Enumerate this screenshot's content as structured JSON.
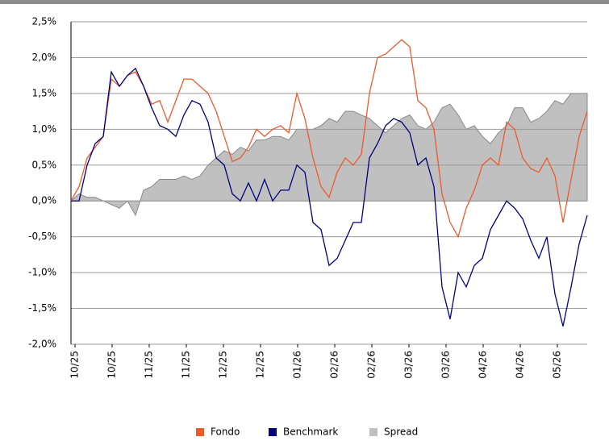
{
  "chart_data": {
    "type": "line",
    "x": [
      0,
      1,
      2,
      3,
      4,
      5,
      6,
      7,
      8,
      9,
      10,
      11,
      12,
      13,
      14,
      15,
      16,
      17,
      18,
      19,
      20,
      21,
      22,
      23,
      24,
      25,
      26,
      27,
      28,
      29,
      30,
      31,
      32,
      33,
      34,
      35,
      36,
      37,
      38,
      39,
      40,
      41,
      42,
      43,
      44,
      45,
      46,
      47,
      48,
      49,
      50,
      51,
      52,
      53,
      54,
      55,
      56,
      57,
      58,
      59,
      60,
      61,
      62,
      63,
      64
    ],
    "series": [
      {
        "name": "Fondo",
        "color": "#ee5a2a",
        "style": "line",
        "values": [
          0.0,
          0.2,
          0.6,
          0.75,
          0.9,
          1.7,
          1.6,
          1.75,
          1.8,
          1.6,
          1.35,
          1.4,
          1.1,
          1.4,
          1.7,
          1.7,
          1.6,
          1.5,
          1.25,
          0.9,
          0.55,
          0.6,
          0.75,
          1.0,
          0.9,
          1.0,
          1.05,
          0.95,
          1.5,
          1.15,
          0.6,
          0.2,
          0.05,
          0.4,
          0.6,
          0.5,
          0.65,
          1.5,
          2.0,
          2.05,
          2.15,
          2.25,
          2.15,
          1.4,
          1.3,
          1.0,
          0.1,
          -0.3,
          -0.5,
          -0.1,
          0.15,
          0.5,
          0.6,
          0.5,
          1.1,
          1.0,
          0.6,
          0.45,
          0.4,
          0.6,
          0.35,
          -0.3,
          0.3,
          0.9,
          1.25
        ]
      },
      {
        "name": "Benchmark",
        "color": "#000080",
        "style": "line",
        "values": [
          0.0,
          0.0,
          0.5,
          0.8,
          0.9,
          1.8,
          1.6,
          1.75,
          1.85,
          1.6,
          1.3,
          1.05,
          1.0,
          0.9,
          1.2,
          1.4,
          1.35,
          1.1,
          0.6,
          0.5,
          0.1,
          0.0,
          0.25,
          0.0,
          0.3,
          0.0,
          0.15,
          0.15,
          0.5,
          0.4,
          -0.3,
          -0.4,
          -0.9,
          -0.8,
          -0.55,
          -0.3,
          -0.3,
          0.6,
          0.8,
          1.05,
          1.15,
          1.1,
          0.95,
          0.5,
          0.6,
          0.2,
          -1.2,
          -1.65,
          -1.0,
          -1.2,
          -0.9,
          -0.8,
          -0.4,
          -0.2,
          0.0,
          -0.1,
          -0.25,
          -0.55,
          -0.8,
          -0.5,
          -1.3,
          -1.75,
          -1.2,
          -0.6,
          -0.2
        ]
      },
      {
        "name": "Spread",
        "color": "#c0c0c0",
        "style": "area",
        "values": [
          0.0,
          0.1,
          0.05,
          0.05,
          0.0,
          -0.05,
          -0.1,
          0.0,
          -0.2,
          0.15,
          0.2,
          0.3,
          0.3,
          0.3,
          0.35,
          0.3,
          0.35,
          0.5,
          0.6,
          0.7,
          0.65,
          0.75,
          0.7,
          0.85,
          0.85,
          0.9,
          0.9,
          0.85,
          1.0,
          1.0,
          1.0,
          1.05,
          1.15,
          1.1,
          1.25,
          1.25,
          1.2,
          1.15,
          1.05,
          0.95,
          1.05,
          1.15,
          1.2,
          1.05,
          1.0,
          1.1,
          1.3,
          1.35,
          1.2,
          1.0,
          1.05,
          0.9,
          0.8,
          0.95,
          1.05,
          1.3,
          1.3,
          1.1,
          1.15,
          1.25,
          1.4,
          1.35,
          1.5,
          1.5,
          1.5
        ]
      }
    ],
    "xlim": [
      0,
      64
    ],
    "xticks": [
      {
        "value": 0.5,
        "label": "10/25"
      },
      {
        "value": 5.1,
        "label": "10/25"
      },
      {
        "value": 9.7,
        "label": "11/25"
      },
      {
        "value": 14.3,
        "label": "11/25"
      },
      {
        "value": 18.9,
        "label": "12/25"
      },
      {
        "value": 23.5,
        "label": "12/25"
      },
      {
        "value": 28.1,
        "label": "01/26"
      },
      {
        "value": 32.7,
        "label": "02/26"
      },
      {
        "value": 37.3,
        "label": "02/26"
      },
      {
        "value": 41.9,
        "label": "03/26"
      },
      {
        "value": 46.5,
        "label": "03/26"
      },
      {
        "value": 51.1,
        "label": "04/26"
      },
      {
        "value": 55.7,
        "label": "04/26"
      },
      {
        "value": 60.3,
        "label": "05/26"
      }
    ],
    "ylim": [
      -2.0,
      2.5
    ],
    "yticks": [
      {
        "value": 2.5,
        "label": "2,5%"
      },
      {
        "value": 2.0,
        "label": "2,0%"
      },
      {
        "value": 1.5,
        "label": "1,5%"
      },
      {
        "value": 1.0,
        "label": "1,0%"
      },
      {
        "value": 0.5,
        "label": "0,5%"
      },
      {
        "value": 0.0,
        "label": "0,0%"
      },
      {
        "value": -0.5,
        "label": "-0,5%"
      },
      {
        "value": -1.0,
        "label": "-1,0%"
      },
      {
        "value": -1.5,
        "label": "-1,5%"
      },
      {
        "value": -2.0,
        "label": "-2,0%"
      }
    ],
    "grid": true,
    "legend": "bottom"
  }
}
